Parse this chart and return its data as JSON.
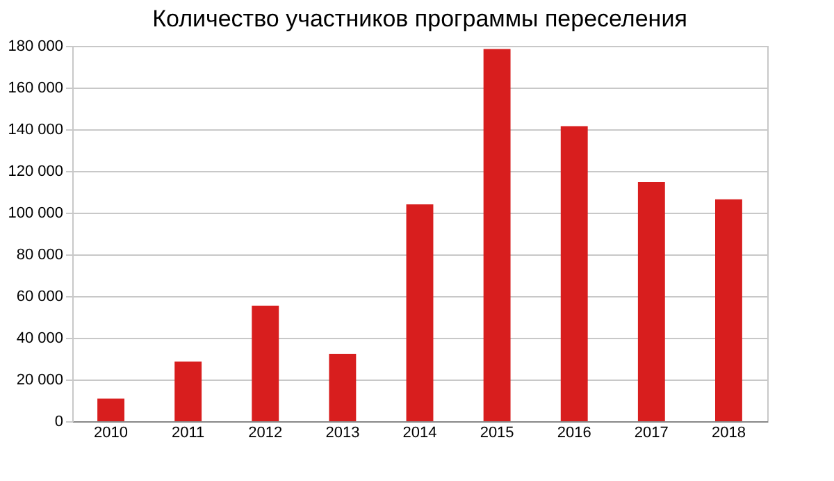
{
  "chart_data": {
    "type": "bar",
    "title": "Количество участников программы переселения",
    "categories": [
      "2010",
      "2011",
      "2012",
      "2013",
      "2014",
      "2015",
      "2016",
      "2017",
      "2018"
    ],
    "values": [
      10800,
      28600,
      55400,
      32300,
      104000,
      178500,
      141500,
      114700,
      106400
    ],
    "color": "#d81e1e",
    "ylim": [
      0,
      180000
    ],
    "yticks": [
      {
        "value": 0,
        "label": "0"
      },
      {
        "value": 20000,
        "label": "20 000"
      },
      {
        "value": 40000,
        "label": "40 000"
      },
      {
        "value": 60000,
        "label": "60 000"
      },
      {
        "value": 80000,
        "label": "80 000"
      },
      {
        "value": 100000,
        "label": "100 000"
      },
      {
        "value": 120000,
        "label": "120 000"
      },
      {
        "value": 140000,
        "label": "140 000"
      },
      {
        "value": 160000,
        "label": "160 000"
      },
      {
        "value": 180000,
        "label": "180 000"
      }
    ],
    "grid": "y"
  }
}
